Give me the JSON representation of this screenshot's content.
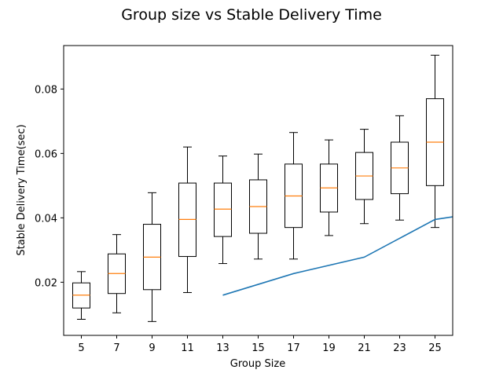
{
  "chart_data": {
    "type": "box",
    "title": "Group size vs Stable Delivery Time",
    "xlabel": "Group Size",
    "ylabel": "Stable Delivery Time(sec)",
    "categories": [
      "5",
      "7",
      "9",
      "11",
      "13",
      "15",
      "17",
      "19",
      "21",
      "23",
      "25"
    ],
    "xlim": [
      4,
      26
    ],
    "ylim": [
      0.0035,
      0.0935
    ],
    "yticks": [
      "0.02",
      "0.04",
      "0.06",
      "0.08"
    ],
    "grid": false,
    "colors": {
      "box": "#000000",
      "median": "#ff7f0e",
      "line": "#1f77b4"
    },
    "boxes": [
      {
        "group": 5,
        "whisker_low": 0.0085,
        "q1": 0.012,
        "median": 0.016,
        "q3": 0.0198,
        "whisker_high": 0.0233
      },
      {
        "group": 7,
        "whisker_low": 0.0105,
        "q1": 0.0165,
        "median": 0.0227,
        "q3": 0.0288,
        "whisker_high": 0.0348
      },
      {
        "group": 9,
        "whisker_low": 0.0078,
        "q1": 0.0177,
        "median": 0.0278,
        "q3": 0.038,
        "whisker_high": 0.0478
      },
      {
        "group": 11,
        "whisker_low": 0.0168,
        "q1": 0.028,
        "median": 0.0395,
        "q3": 0.0508,
        "whisker_high": 0.062
      },
      {
        "group": 13,
        "whisker_low": 0.0258,
        "q1": 0.0342,
        "median": 0.0427,
        "q3": 0.0508,
        "whisker_high": 0.0592
      },
      {
        "group": 15,
        "whisker_low": 0.0272,
        "q1": 0.0352,
        "median": 0.0435,
        "q3": 0.0518,
        "whisker_high": 0.0598
      },
      {
        "group": 17,
        "whisker_low": 0.0272,
        "q1": 0.037,
        "median": 0.0468,
        "q3": 0.0567,
        "whisker_high": 0.0665
      },
      {
        "group": 19,
        "whisker_low": 0.0345,
        "q1": 0.0418,
        "median": 0.0493,
        "q3": 0.0567,
        "whisker_high": 0.0642
      },
      {
        "group": 21,
        "whisker_low": 0.0382,
        "q1": 0.0457,
        "median": 0.053,
        "q3": 0.0603,
        "whisker_high": 0.0675
      },
      {
        "group": 23,
        "whisker_low": 0.0393,
        "q1": 0.0475,
        "median": 0.0555,
        "q3": 0.0635,
        "whisker_high": 0.0717
      },
      {
        "group": 25,
        "whisker_low": 0.037,
        "q1": 0.05,
        "median": 0.0635,
        "q3": 0.077,
        "whisker_high": 0.0905
      }
    ],
    "series": [
      {
        "x": [
          13,
          17,
          21,
          25,
          26
        ],
        "y": [
          0.016,
          0.0227,
          0.0278,
          0.0395,
          0.0403
        ]
      }
    ]
  }
}
